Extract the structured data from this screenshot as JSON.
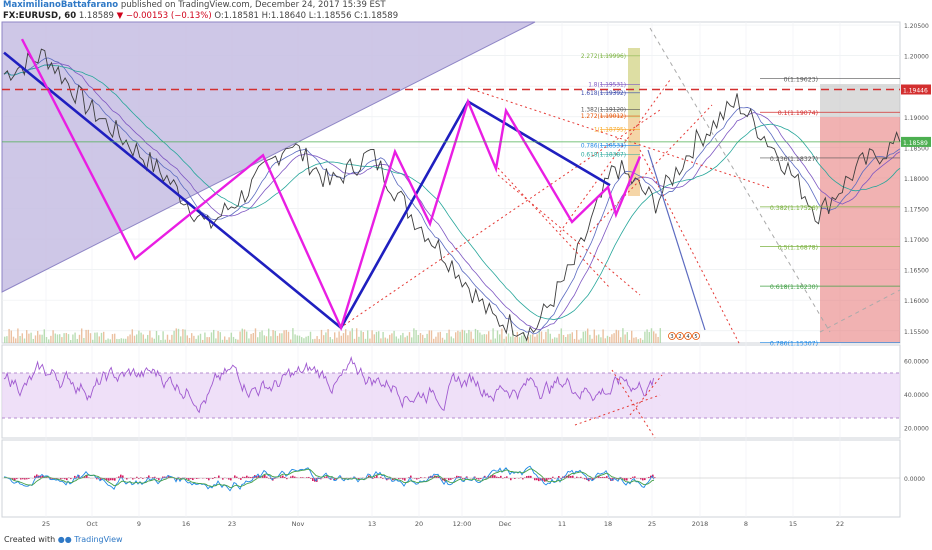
{
  "header": {
    "author": "MaximilianoBattafarano",
    "published": "published on TradingView.com, December 24, 2017 15:39 EST",
    "symbol": "FX:EURUSD, 60",
    "last": "1.18589",
    "change": "▼ −0.00153 (−0.13%)",
    "ohlc": "O:1.18581 H:1.18640 L:1.18556 C:1.18589"
  },
  "footer": {
    "created_with": "Created with",
    "brand": "TradingView"
  },
  "colors": {
    "pink_zigzag": "#e91ee3",
    "blue_zigzag": "#1f1fbf",
    "red_level": "#d32f2f",
    "rsi_line": "#a05ad0",
    "triangle_fill": "#b8acd8",
    "rsi_band": "#ead5f5",
    "macd_hist": "#d81b60",
    "green_price": "#4caf50"
  },
  "chart_data": [
    {
      "type": "line",
      "name": "price_panel",
      "title": "FX:EURUSD, 60",
      "ylim": [
        1.153,
        1.2055
      ],
      "y_ticks": [
        "1.20500",
        "1.20000",
        "1.19500",
        "1.19000",
        "1.18500",
        "1.18000",
        "1.17500",
        "1.17000",
        "1.16500",
        "1.16000",
        "1.15500"
      ],
      "x_ticks": [
        "25",
        "Oct",
        "9",
        "16",
        "23",
        "Nov",
        "13",
        "20",
        "12:00",
        "Dec",
        "11",
        "18",
        "25",
        "2018",
        "8",
        "15",
        "22"
      ],
      "x": [
        0,
        3,
        6,
        9,
        12,
        15,
        18,
        21,
        24,
        27,
        30,
        33,
        36,
        39,
        42,
        45,
        48,
        51,
        54,
        57,
        60,
        63,
        66
      ],
      "close": [
        1.197,
        1.2002,
        1.192,
        1.186,
        1.18,
        1.172,
        1.178,
        1.186,
        1.179,
        1.184,
        1.174,
        1.166,
        1.157,
        1.155,
        1.166,
        1.182,
        1.176,
        1.186,
        1.1925,
        1.184,
        1.174,
        1.182,
        1.1859
      ],
      "pink_zigzag": [
        1.2027,
        1.1668,
        1.1837,
        1.1555,
        1.1843,
        1.1725,
        1.1925,
        1.1815,
        1.191,
        1.1728,
        1.1785,
        1.174,
        1.1835
      ],
      "blue_zigzag": [
        1.2005,
        1.1555,
        1.1925,
        1.1788
      ],
      "red_level": {
        "label": "1.19446",
        "value": 1.19446
      },
      "current_price": {
        "label": "1.18589",
        "value": 1.18589
      },
      "fibonacci_right": [
        {
          "label": "0(1.19623)",
          "value": 1.19623
        },
        {
          "label": "0.1(1.19074)",
          "value": 1.19074
        },
        {
          "label": "0.236(1.18327)",
          "value": 1.18327
        },
        {
          "label": "0.382(1.17526)",
          "value": 1.17526
        },
        {
          "label": "0.5(1.16878)",
          "value": 1.16878
        },
        {
          "label": "0.618(1.16230)",
          "value": 1.1623
        },
        {
          "label": "0.786(1.15307)",
          "value": 1.15307
        }
      ],
      "fibonacci_ext": [
        {
          "label": "2.272(1.19996)",
          "value": 1.19996
        },
        {
          "label": "1.8(1.19531)",
          "value": 1.19531
        },
        {
          "label": "1.618(1.19392)",
          "value": 1.19392
        },
        {
          "label": "1.382(1.19120)",
          "value": 1.1912
        },
        {
          "label": "1.272(1.19012)",
          "value": 1.19012
        },
        {
          "label": "1(1.18795)",
          "value": 1.18795
        },
        {
          "label": "0.786(1.18533)",
          "value": 1.18533
        },
        {
          "label": "0.618(1.18387)",
          "value": 1.18387
        }
      ],
      "wave_labels": [
        "3",
        "2",
        "4",
        "5"
      ]
    },
    {
      "type": "line",
      "name": "rsi_panel",
      "ylim": [
        15,
        68
      ],
      "y_ticks": [
        "60.0000",
        "40.0000",
        "20.0000"
      ],
      "rsi_current": {
        "label": "60.0000",
        "value": 60
      },
      "band": [
        30,
        70
      ]
    },
    {
      "type": "bar",
      "name": "macd_panel",
      "y_ticks": [
        "0.0000"
      ]
    }
  ]
}
